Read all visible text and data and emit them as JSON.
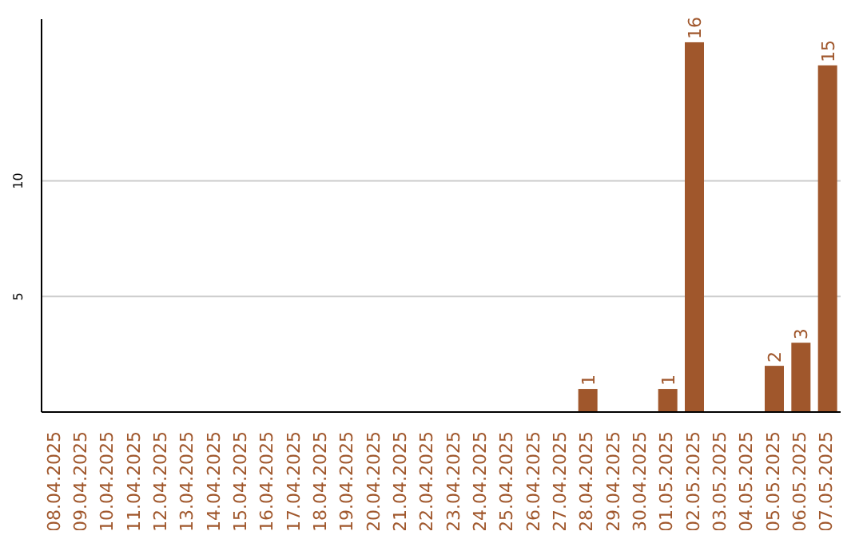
{
  "chart_data": {
    "type": "bar",
    "categories": [
      "08.04.2025",
      "09.04.2025",
      "10.04.2025",
      "11.04.2025",
      "12.04.2025",
      "13.04.2025",
      "14.04.2025",
      "15.04.2025",
      "16.04.2025",
      "17.04.2025",
      "18.04.2025",
      "19.04.2025",
      "20.04.2025",
      "21.04.2025",
      "22.04.2025",
      "23.04.2025",
      "24.04.2025",
      "25.04.2025",
      "26.04.2025",
      "27.04.2025",
      "28.04.2025",
      "29.04.2025",
      "30.04.2025",
      "01.05.2025",
      "02.05.2025",
      "03.05.2025",
      "04.05.2025",
      "05.05.2025",
      "06.05.2025",
      "07.05.2025"
    ],
    "values": [
      0,
      0,
      0,
      0,
      0,
      0,
      0,
      0,
      0,
      0,
      0,
      0,
      0,
      0,
      0,
      0,
      0,
      0,
      0,
      0,
      1,
      0,
      0,
      1,
      16,
      0,
      0,
      2,
      3,
      15
    ],
    "value_labels": [
      null,
      null,
      null,
      null,
      null,
      null,
      null,
      null,
      null,
      null,
      null,
      null,
      null,
      null,
      null,
      null,
      null,
      null,
      null,
      null,
      "1",
      null,
      null,
      "1",
      "16",
      null,
      null,
      "2",
      "3",
      "15"
    ],
    "color": "#a0572c",
    "ylim": [
      0,
      17
    ],
    "yticks": [
      5,
      10
    ],
    "grid": "y"
  }
}
